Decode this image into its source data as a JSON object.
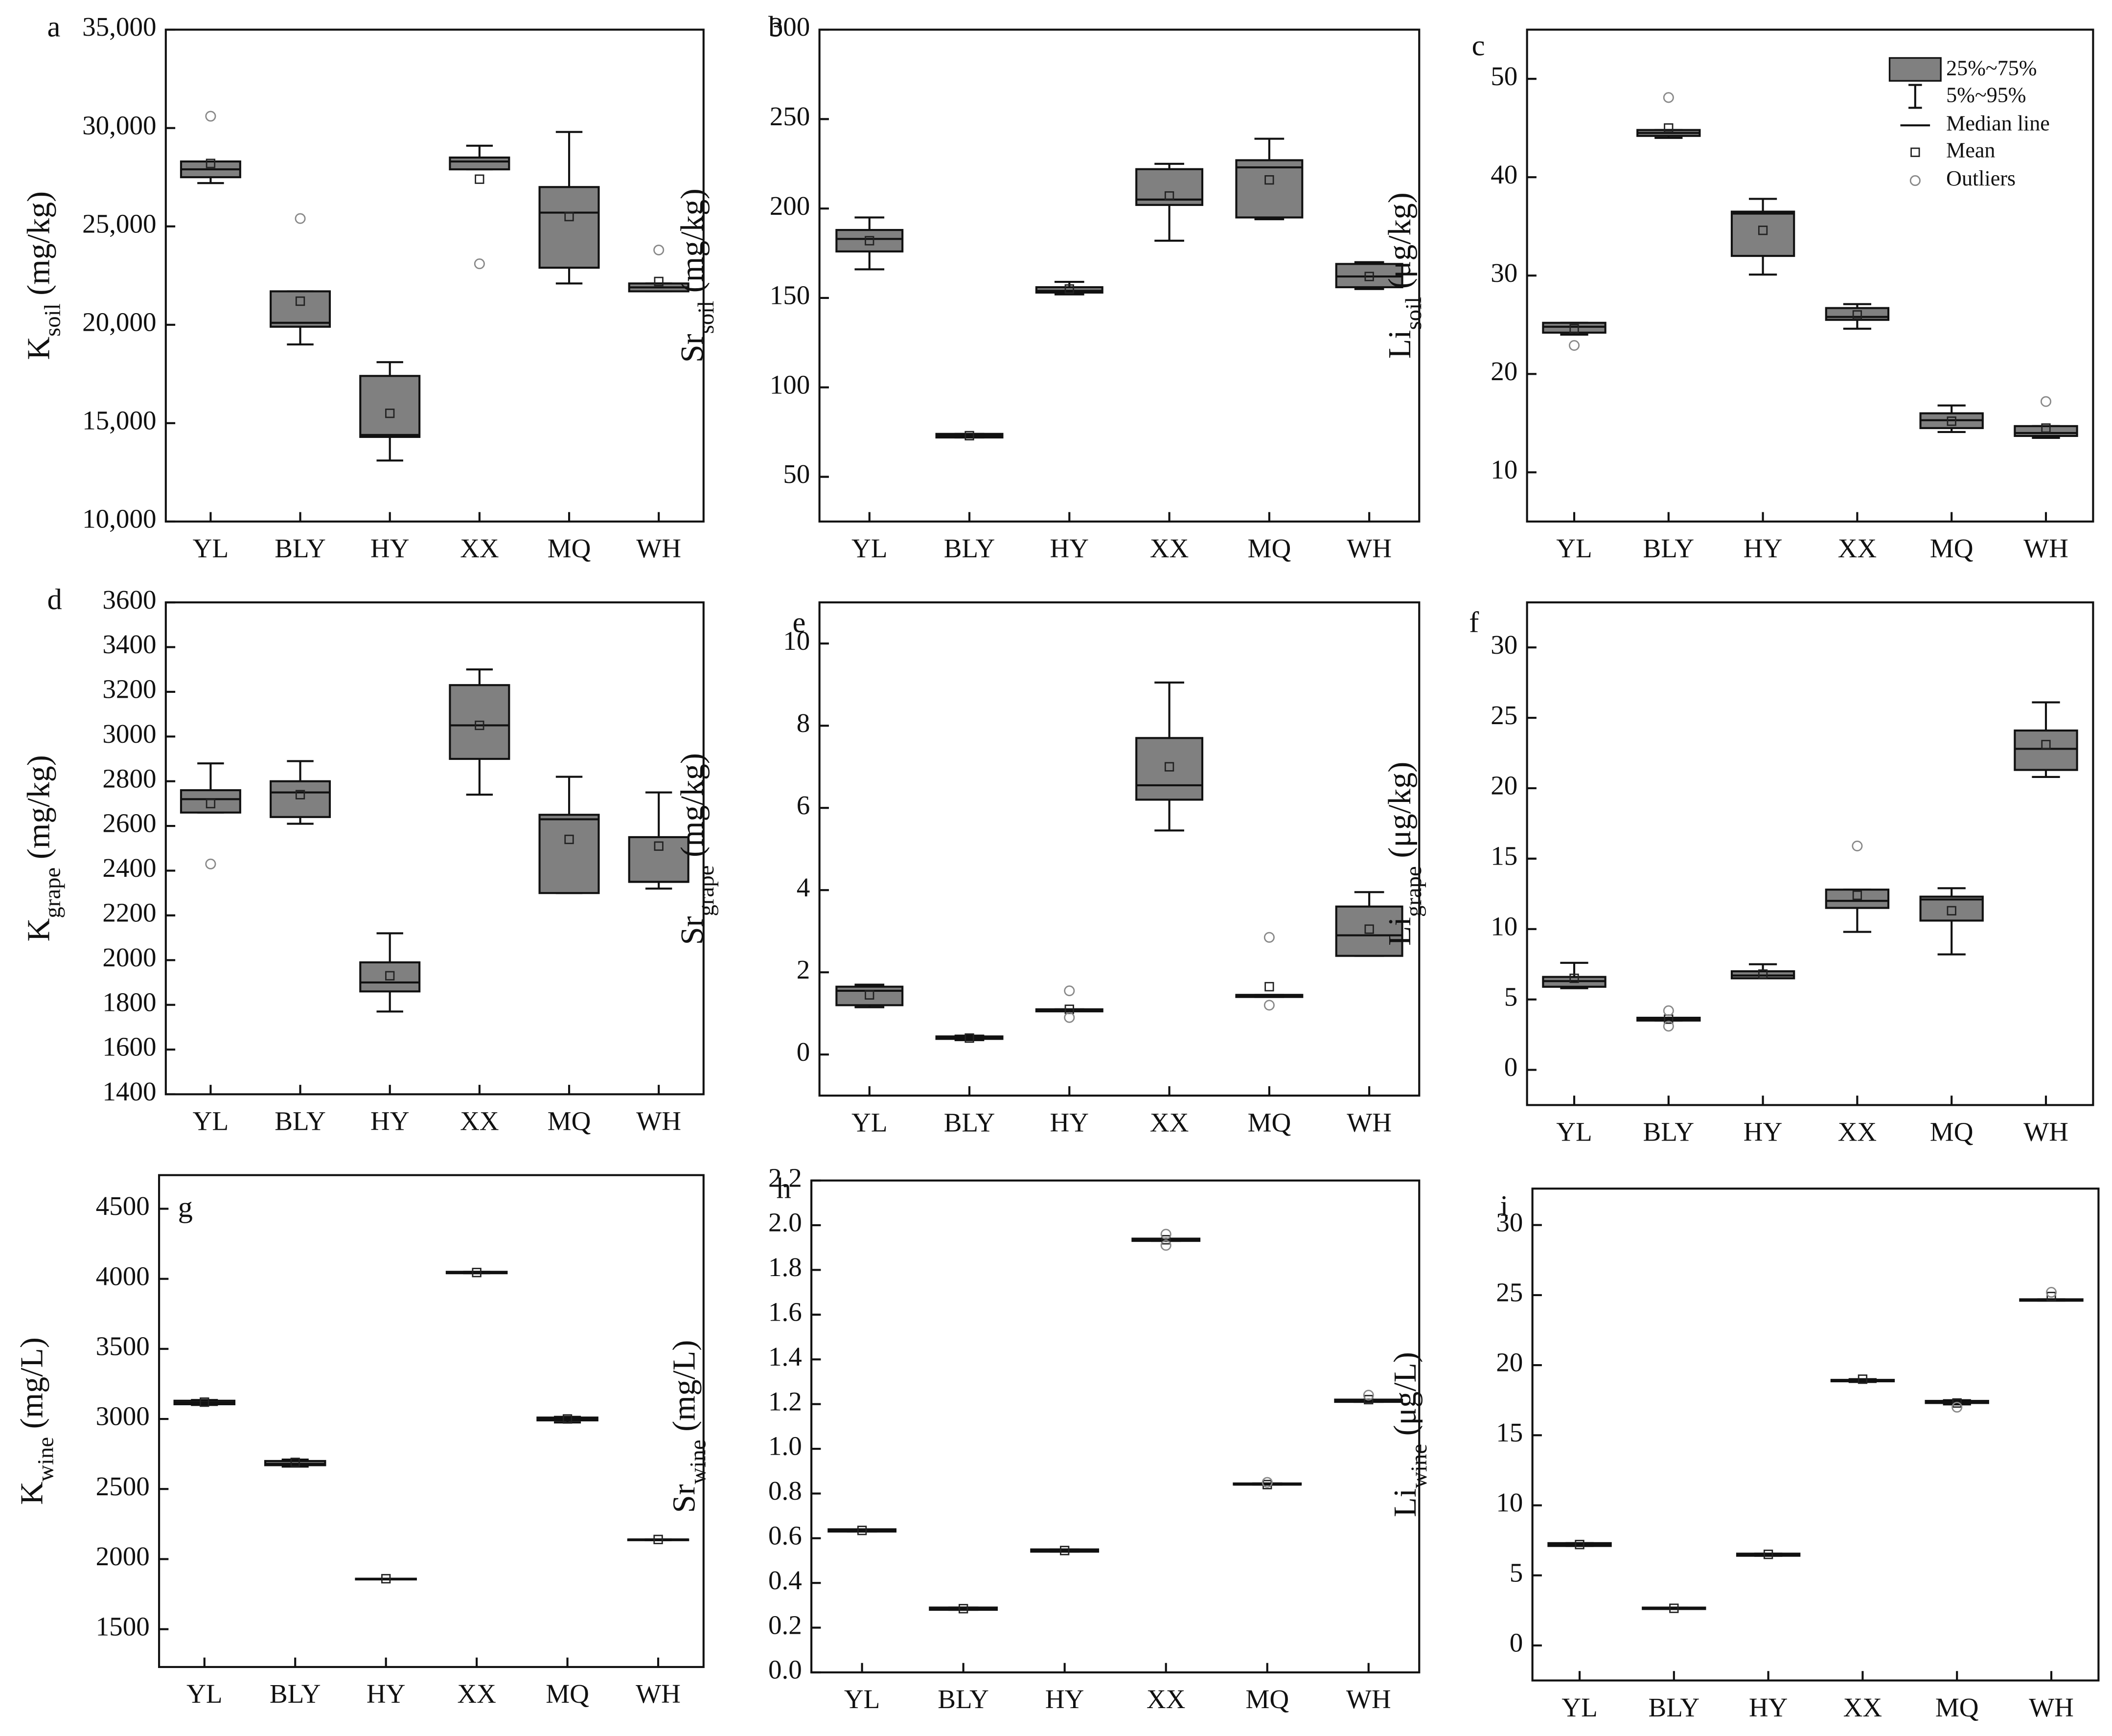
{
  "chart_data": [
    {
      "type": "box",
      "panel": "a",
      "ylabel": {
        "main": "K",
        "sub": "soil",
        "unit": "(mg/kg)"
      },
      "color": "#808080",
      "categories": [
        "YL",
        "BLY",
        "HY",
        "XX",
        "MQ",
        "WH"
      ],
      "whisker_low": [
        27200,
        19000,
        13100,
        27900,
        22100,
        21700
      ],
      "q1": [
        27500,
        19900,
        14300,
        27900,
        22900,
        21700
      ],
      "median": [
        27900,
        20100,
        14400,
        28300,
        25700,
        21900
      ],
      "q3": [
        28300,
        21700,
        17400,
        28500,
        27000,
        22100
      ],
      "whisker_high": [
        28300,
        21700,
        18100,
        29100,
        29800,
        22100
      ],
      "mean": [
        28200,
        21200,
        15500,
        27400,
        25500,
        22200
      ],
      "outliers": [
        [
          30600
        ],
        [
          25400
        ],
        [],
        [
          23100
        ],
        [],
        [
          23800
        ]
      ],
      "ylim": [
        10000,
        35000
      ],
      "yticks": [
        {
          "value": 10000,
          "label": "10,000"
        },
        {
          "value": 15000,
          "label": "15,000"
        },
        {
          "value": 20000,
          "label": "20,000"
        },
        {
          "value": 25000,
          "label": "25,000"
        },
        {
          "value": 30000,
          "label": "30,000"
        },
        {
          "value": 35000,
          "label": "35,000"
        }
      ]
    },
    {
      "type": "box",
      "panel": "b",
      "ylabel": {
        "main": "Sr",
        "sub": "soil",
        "unit": "(mg/kg)"
      },
      "color": "#808080",
      "categories": [
        "YL",
        "BLY",
        "HY",
        "XX",
        "MQ",
        "WH"
      ],
      "whisker_low": [
        166,
        72,
        152,
        182,
        194,
        155
      ],
      "q1": [
        176,
        72,
        153,
        202,
        195,
        156
      ],
      "median": [
        183,
        73,
        154,
        205,
        223,
        162
      ],
      "q3": [
        188,
        74,
        156,
        222,
        227,
        169
      ],
      "whisker_high": [
        195,
        74,
        159,
        225,
        239,
        170
      ],
      "mean": [
        182,
        73,
        155,
        207,
        216,
        162
      ],
      "outliers": [
        [],
        [],
        [],
        [],
        [],
        []
      ],
      "ylim": [
        25,
        300
      ],
      "yticks": [
        50,
        100,
        150,
        200,
        250,
        300
      ]
    },
    {
      "type": "box",
      "panel": "c",
      "ylabel": {
        "main": "Li",
        "sub": "soil",
        "unit": "(μg/kg)"
      },
      "color": "#808080",
      "categories": [
        "YL",
        "BLY",
        "HY",
        "XX",
        "MQ",
        "WH"
      ],
      "whisker_low": [
        24,
        44,
        30.1,
        24.6,
        14.1,
        13.5
      ],
      "q1": [
        24.2,
        44.2,
        32,
        25.5,
        14.5,
        13.7
      ],
      "median": [
        24.8,
        44.5,
        36.3,
        25.8,
        15.3,
        14
      ],
      "q3": [
        25.2,
        44.8,
        36.5,
        26.7,
        16,
        14.7
      ],
      "whisker_high": [
        25.2,
        44.8,
        37.8,
        27.1,
        16.8,
        14.7
      ],
      "mean": [
        24.6,
        45,
        34.6,
        26,
        15.2,
        14.5
      ],
      "outliers": [
        [
          22.9
        ],
        [
          48.1
        ],
        [],
        [],
        [],
        [
          17.2
        ]
      ],
      "ylim": [
        5,
        55
      ],
      "yticks": [
        10,
        20,
        30,
        40,
        50
      ],
      "legend": [
        "25%~75%",
        "5%~95%",
        "Median line",
        "Mean",
        "Outliers"
      ]
    },
    {
      "type": "box",
      "panel": "d",
      "ylabel": {
        "main": "K",
        "sub": "grape",
        "unit": "(mg/kg)"
      },
      "color": "#808080",
      "categories": [
        "YL",
        "BLY",
        "HY",
        "XX",
        "MQ",
        "WH"
      ],
      "whisker_low": [
        2660,
        2610,
        1770,
        2740,
        2300,
        2320
      ],
      "q1": [
        2660,
        2640,
        1860,
        2900,
        2300,
        2350
      ],
      "median": [
        2720,
        2750,
        1900,
        3050,
        2630,
        2350
      ],
      "q3": [
        2760,
        2800,
        1990,
        3230,
        2650,
        2550
      ],
      "whisker_high": [
        2880,
        2890,
        2120,
        3300,
        2820,
        2750
      ],
      "mean": [
        2700,
        2740,
        1930,
        3050,
        2540,
        2510
      ],
      "outliers": [
        [
          2430
        ],
        [],
        [],
        [],
        [],
        []
      ],
      "ylim": [
        1400,
        3600
      ],
      "yticks": [
        1400,
        1600,
        1800,
        2000,
        2200,
        2400,
        2600,
        2800,
        3000,
        3200,
        3400,
        3600
      ]
    },
    {
      "type": "box",
      "panel": "e",
      "ylabel": {
        "main": "Sr",
        "sub": "grape",
        "unit": "(mg/kg)"
      },
      "color": "#808080",
      "categories": [
        "YL",
        "BLY",
        "HY",
        "XX",
        "MQ",
        "WH"
      ],
      "whisker_low": [
        1.15,
        0.35,
        1.05,
        5.45,
        1.4,
        2.4
      ],
      "q1": [
        1.2,
        0.38,
        1.05,
        6.2,
        1.4,
        2.4
      ],
      "median": [
        1.55,
        0.4,
        1.08,
        6.55,
        1.45,
        2.9
      ],
      "q3": [
        1.65,
        0.44,
        1.1,
        7.7,
        1.45,
        3.6
      ],
      "whisker_high": [
        1.7,
        0.46,
        1.1,
        9.05,
        1.45,
        3.95
      ],
      "mean": [
        1.45,
        0.4,
        1.1,
        7,
        1.65,
        3.05
      ],
      "outliers": [
        [],
        [],
        [
          1.55,
          0.9
        ],
        [],
        [
          2.85,
          1.2
        ],
        []
      ],
      "ylim": [
        -1,
        11
      ],
      "yticks": [
        0,
        2,
        4,
        6,
        8,
        10
      ]
    },
    {
      "type": "box",
      "panel": "f",
      "ylabel": {
        "main": "Li",
        "sub": "grape",
        "unit": "(μg/kg)"
      },
      "color": "#808080",
      "categories": [
        "YL",
        "BLY",
        "HY",
        "XX",
        "MQ",
        "WH"
      ],
      "whisker_low": [
        5.8,
        3.5,
        6.5,
        9.8,
        8.2,
        20.8
      ],
      "q1": [
        5.9,
        3.5,
        6.5,
        11.5,
        10.6,
        21.3
      ],
      "median": [
        6.3,
        3.6,
        6.7,
        12,
        12.1,
        22.8
      ],
      "q3": [
        6.6,
        3.7,
        7,
        12.8,
        12.3,
        24.1
      ],
      "whisker_high": [
        7.6,
        3.7,
        7.5,
        12.8,
        12.9,
        26.1
      ],
      "mean": [
        6.5,
        3.6,
        6.8,
        12.4,
        11.3,
        23.1
      ],
      "outliers": [
        [],
        [
          4.2,
          3.1
        ],
        [],
        [
          15.9
        ],
        [],
        []
      ],
      "ylim": [
        -2.5,
        33.2
      ],
      "yticks": [
        0,
        5,
        10,
        15,
        20,
        25,
        30
      ]
    },
    {
      "type": "box",
      "panel": "g",
      "ylabel": {
        "main": "K",
        "sub": "wine",
        "unit": "(mg/L)"
      },
      "color": "#808080",
      "categories": [
        "YL",
        "BLY",
        "HY",
        "XX",
        "MQ",
        "WH"
      ],
      "whisker_low": [
        3100,
        2660,
        1855,
        4040,
        2975,
        2135
      ],
      "q1": [
        3105,
        2670,
        1855,
        4040,
        2990,
        2135
      ],
      "median": [
        3115,
        2680,
        1860,
        4045,
        3000,
        2140
      ],
      "q3": [
        3130,
        2700,
        1860,
        4050,
        3010,
        2140
      ],
      "whisker_high": [
        3135,
        2710,
        1860,
        4050,
        3015,
        2140
      ],
      "mean": [
        3120,
        2690,
        1860,
        4045,
        3000,
        2140
      ],
      "outliers": [
        [],
        [],
        [],
        [],
        [],
        []
      ],
      "ylim": [
        1230,
        4740
      ],
      "yticks": [
        1500,
        2000,
        2500,
        3000,
        3500,
        4000,
        4500
      ]
    },
    {
      "type": "box",
      "panel": "h",
      "ylabel": {
        "main": "Sr",
        "sub": "wine",
        "unit": "(mg/L)"
      },
      "color": "#808080",
      "categories": [
        "YL",
        "BLY",
        "HY",
        "XX",
        "MQ",
        "WH"
      ],
      "whisker_low": [
        0.63,
        0.28,
        0.54,
        1.93,
        0.84,
        1.21
      ],
      "q1": [
        0.63,
        0.28,
        0.54,
        1.93,
        0.84,
        1.21
      ],
      "median": [
        0.635,
        0.285,
        0.545,
        1.935,
        0.84,
        1.215
      ],
      "q3": [
        0.64,
        0.29,
        0.55,
        1.94,
        0.845,
        1.22
      ],
      "whisker_high": [
        0.64,
        0.29,
        0.55,
        1.94,
        0.845,
        1.22
      ],
      "mean": [
        0.635,
        0.285,
        0.545,
        1.935,
        0.84,
        1.22
      ],
      "outliers": [
        [],
        [],
        [],
        [
          1.96,
          1.91
        ],
        [
          0.85
        ],
        [
          1.24
        ]
      ],
      "ylim": [
        0,
        2.2
      ],
      "yticks": [
        {
          "value": 0,
          "label": "0.0"
        },
        0.2,
        0.4,
        0.6,
        0.8,
        {
          "value": 1,
          "label": "1.0"
        },
        1.2,
        1.4,
        1.6,
        1.8,
        {
          "value": 2,
          "label": "2.0"
        },
        2.2
      ]
    },
    {
      "type": "box",
      "panel": "i",
      "ylabel": {
        "main": "Li",
        "sub": "wine",
        "unit": "(μg/L)"
      },
      "color": "#808080",
      "categories": [
        "YL",
        "BLY",
        "HY",
        "XX",
        "MQ",
        "WH"
      ],
      "whisker_low": [
        7.1,
        2.6,
        6.4,
        18.8,
        17.2,
        24.6
      ],
      "q1": [
        7.1,
        2.6,
        6.4,
        18.85,
        17.3,
        24.6
      ],
      "median": [
        7.2,
        2.65,
        6.5,
        18.9,
        17.35,
        24.65
      ],
      "q3": [
        7.3,
        2.7,
        6.55,
        18.95,
        17.45,
        24.7
      ],
      "whisker_high": [
        7.3,
        2.7,
        6.55,
        19,
        17.5,
        24.7
      ],
      "mean": [
        7.2,
        2.65,
        6.5,
        19,
        17.3,
        24.9
      ],
      "outliers": [
        [],
        [],
        [],
        [],
        [
          17
        ],
        [
          25.2
        ]
      ],
      "ylim": [
        -2.5,
        32.6
      ],
      "yticks": [
        0,
        5,
        10,
        15,
        20,
        25,
        30
      ]
    }
  ]
}
